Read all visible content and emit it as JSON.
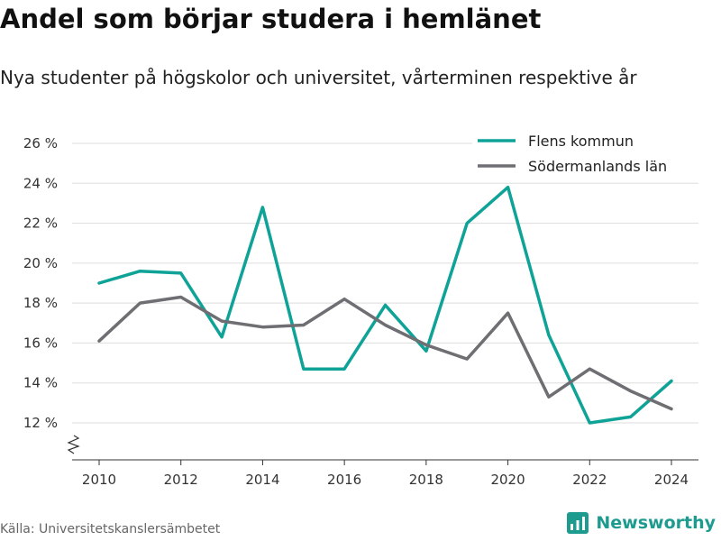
{
  "header": {
    "title": "Andel som börjar studera i hemlänet",
    "subtitle": "Nya studenter på högskolor och universitet, vårterminen respektive år"
  },
  "footer": {
    "source": "Källa: Universitetskanslersämbetet",
    "brand": "Newsworthy"
  },
  "colors": {
    "series_flen": "#0fa398",
    "series_lan": "#6e6e73",
    "grid": "#dddddd",
    "brand": "#1d9b8f"
  },
  "chart_data": {
    "type": "line",
    "title": "Andel som börjar studera i hemlänet",
    "subtitle": "Nya studenter på högskolor och universitet, vårterminen respektive år",
    "x": [
      2010,
      2011,
      2012,
      2013,
      2014,
      2015,
      2016,
      2017,
      2018,
      2019,
      2020,
      2021,
      2022,
      2023,
      2024
    ],
    "x_ticks": [
      2010,
      2012,
      2014,
      2016,
      2018,
      2020,
      2022,
      2024
    ],
    "xlim": [
      2010,
      2024
    ],
    "y_ticks": [
      12,
      14,
      16,
      18,
      20,
      22,
      24,
      26
    ],
    "y_tick_labels": [
      "12 %",
      "14 %",
      "16 %",
      "18 %",
      "20 %",
      "22 %",
      "24 %",
      "26 %"
    ],
    "ylim": [
      12,
      26
    ],
    "y_unit": "%",
    "y_axis_break": true,
    "grid": true,
    "legend_position": "top-right",
    "series": [
      {
        "name": "Flens kommun",
        "color": "#0fa398",
        "values": [
          19.0,
          19.6,
          19.5,
          16.3,
          22.8,
          14.7,
          14.7,
          17.9,
          15.6,
          22.0,
          23.8,
          16.4,
          12.0,
          12.3,
          14.1
        ]
      },
      {
        "name": "Södermanlands län",
        "color": "#6e6e73",
        "values": [
          16.1,
          18.0,
          18.3,
          17.1,
          16.8,
          16.9,
          18.2,
          16.9,
          15.9,
          15.2,
          17.5,
          13.3,
          14.7,
          13.6,
          12.7
        ]
      }
    ]
  }
}
